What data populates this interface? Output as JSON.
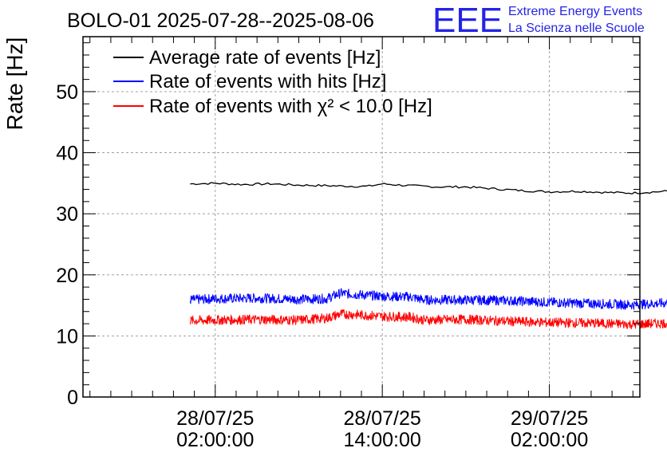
{
  "header": {
    "title": "BOLO-01 2025-07-28--2025-08-06",
    "logo": {
      "mark": "EEE",
      "line1": "Extreme Energy Events",
      "line2": "La Scienza nelle Scuole",
      "color": "#2424e6"
    }
  },
  "chart_data": {
    "type": "line",
    "ylabel": "Rate [Hz]",
    "ylim": [
      0,
      59
    ],
    "y_ticks": [
      0,
      10,
      20,
      30,
      40,
      50
    ],
    "y_tick_labels": [
      "0",
      "10",
      "20",
      "30",
      "40",
      "50"
    ],
    "x_unit": "hours",
    "xlim": [
      -9.5,
      30.5
    ],
    "x_ticks": [
      0,
      12,
      24
    ],
    "x_tick_labels": [
      {
        "date": "28/07/25",
        "time": "02:00:00"
      },
      {
        "date": "28/07/25",
        "time": "14:00:00"
      },
      {
        "date": "29/07/25",
        "time": "02:00:00"
      }
    ],
    "grid": true,
    "legend_position": "top-left",
    "series": [
      {
        "name": "Average rate of events [Hz]",
        "color": "#000000",
        "style": "smooth",
        "x": [
          -1.8,
          0,
          2,
          4,
          6,
          8,
          10,
          11,
          12,
          14,
          16,
          18,
          20,
          22,
          24,
          26,
          28,
          30,
          32.5
        ],
        "values": [
          34.9,
          35.0,
          34.8,
          34.9,
          34.7,
          34.6,
          34.5,
          34.5,
          34.9,
          34.6,
          34.4,
          34.4,
          34.1,
          33.8,
          33.6,
          33.7,
          33.5,
          33.4,
          33.7
        ]
      },
      {
        "name": "Rate of events with hits [Hz]",
        "color": "#0000ff",
        "style": "noisy",
        "x": [
          -1.8,
          0,
          3,
          6,
          8,
          9,
          10,
          12,
          14,
          15,
          18,
          21,
          24,
          27,
          30,
          32.5
        ],
        "values": [
          15.9,
          16.1,
          16.2,
          16.0,
          16.1,
          17.0,
          16.8,
          16.5,
          16.4,
          15.9,
          15.9,
          15.8,
          15.5,
          15.3,
          15.1,
          15.4
        ]
      },
      {
        "name": "Rate of events with χ² < 10.0 [Hz]",
        "color": "#ff0000",
        "style": "noisy",
        "x": [
          -1.8,
          0,
          3,
          6,
          8,
          9,
          10,
          12,
          14,
          15,
          18,
          21,
          24,
          27,
          30,
          32.5
        ],
        "values": [
          12.5,
          12.6,
          12.7,
          12.6,
          12.9,
          13.6,
          13.5,
          13.2,
          13.1,
          12.6,
          12.7,
          12.4,
          12.2,
          12.1,
          11.9,
          12.1
        ]
      }
    ]
  }
}
